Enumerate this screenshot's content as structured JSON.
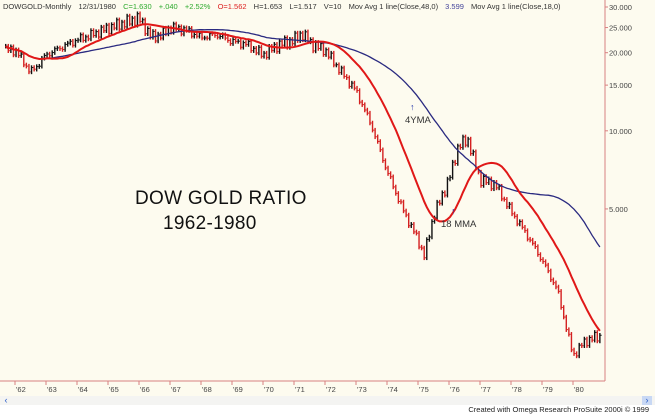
{
  "header": {
    "symbol": "DOWGOLD-Monthly",
    "date": "12/31/1980",
    "close": "C=1.630",
    "change": "+.040",
    "change_pct": "+2.52%",
    "open": "O=1.562",
    "high": "H=1.653",
    "low": "L=1.517",
    "volume": "V=10",
    "ma1_label": "Mov Avg 1 line(Close,48,0)",
    "ma2_value": "3.599",
    "ma2_label": "Mov Avg 1 line(Close,18,0)"
  },
  "colors": {
    "background": "#fdfbef",
    "up_bar": "#111111",
    "down_bar": "#d42020",
    "ma18": "#e01818",
    "ma48": "#2a2a80",
    "axis": "#d88080"
  },
  "chart_data": {
    "type": "line",
    "title_lines": [
      "DOW GOLD RATIO",
      "1962-1980"
    ],
    "y_scale": "log",
    "ylim": [
      1.2,
      30
    ],
    "y_ticks": [
      30,
      25,
      20,
      15,
      10,
      5
    ],
    "y_tick_labels": [
      "30.000",
      "25.000",
      "20.000",
      "15.000",
      "10.000",
      "5.000"
    ],
    "x_tick_labels": [
      "'62",
      "'63",
      "'64",
      "'65",
      "'66",
      "'67",
      "'68",
      "'69",
      "'70",
      "'71",
      "'72",
      "'73",
      "'74",
      "'75",
      "'76",
      "'77",
      "'78",
      "'79",
      "'80"
    ],
    "xlim": [
      1961.7,
      1980.95
    ],
    "series": [
      {
        "type": "bar-ohlc",
        "x": [
          1961.7,
          1962.0,
          1962.25,
          1962.5,
          1962.75,
          1963.0,
          1963.5,
          1964.0,
          1964.5,
          1965.0,
          1965.5,
          1966.0,
          1966.4,
          1966.75,
          1967.0,
          1967.5,
          1968.0,
          1968.5,
          1969.0,
          1969.5,
          1970.0,
          1970.5,
          1971.0,
          1971.25,
          1971.6,
          1972.0,
          1972.5,
          1973.0,
          1973.5,
          1974.0,
          1974.5,
          1975.0,
          1975.2,
          1975.5,
          1976.0,
          1976.3,
          1976.6,
          1977.0,
          1977.5,
          1978.0,
          1978.5,
          1979.0,
          1979.5,
          1980.0,
          1980.4,
          1980.9
        ],
        "close": [
          20.5,
          20.5,
          18.7,
          16.8,
          18.0,
          19.6,
          21.0,
          22.4,
          23.5,
          24.9,
          26.0,
          27.2,
          23.0,
          23.5,
          25.0,
          24.5,
          22.9,
          23.5,
          22.1,
          21.5,
          19.6,
          21.5,
          22.4,
          23.7,
          21.5,
          20.5,
          17.0,
          14.3,
          10.5,
          7.0,
          5.0,
          3.8,
          3.3,
          4.7,
          6.5,
          8.7,
          9.3,
          6.5,
          6.2,
          4.9,
          4.0,
          3.18,
          2.43,
          1.36,
          1.55,
          1.63
        ]
      }
    ],
    "moving_averages": [
      {
        "period_months": 48,
        "color": "#2a2a80"
      },
      {
        "period_months": 18,
        "color": "#e01818"
      }
    ],
    "annotations": [
      {
        "text": "4YMA",
        "x": 1974.9,
        "y": 13.5
      },
      {
        "text": "18 MMA",
        "x": 1975.8,
        "y": 4.6
      }
    ],
    "grid": false
  },
  "footer": "Created with Omega Research ProSuite 2000i © 1999"
}
